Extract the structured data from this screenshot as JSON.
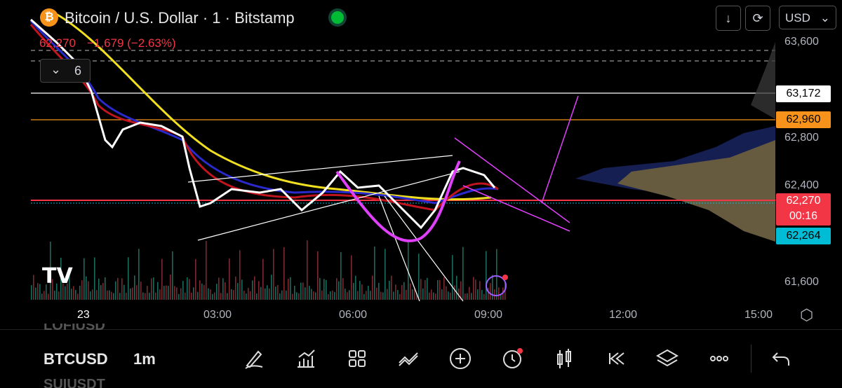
{
  "header": {
    "title": "Bitcoin / U.S. Dollar · 1 · Bitstamp",
    "quote": "62,270",
    "change": "−1,679 (−2.63%)",
    "indicators": "6",
    "currency": "USD"
  },
  "price_axis": {
    "labels": [
      "63,600",
      "62,800",
      "62,400",
      "61,600"
    ],
    "tags": [
      "63,172",
      "62,960",
      "62,270",
      "00:16",
      "62,264"
    ]
  },
  "time_axis": [
    "23",
    "03:00",
    "06:00",
    "09:00",
    "12:00",
    "15:00"
  ],
  "toolbar": {
    "symbol": "BTCUSD",
    "interval": "1m",
    "watchlist_prev": "LOFIUSD",
    "watchlist_next": "SUIUSDT"
  }
}
